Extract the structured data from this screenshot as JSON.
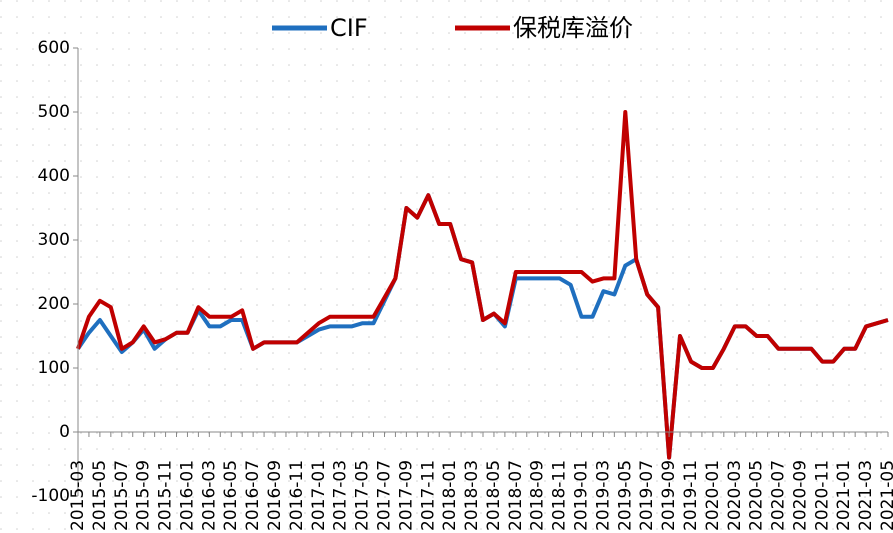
{
  "chart_data": {
    "type": "line",
    "categories": [
      "2015-03",
      null,
      "2015-05",
      null,
      "2015-07",
      null,
      "2015-09",
      null,
      "2015-11",
      null,
      "2016-01",
      null,
      "2016-03",
      null,
      "2016-05",
      null,
      "2016-07",
      null,
      "2016-09",
      null,
      "2016-11",
      null,
      "2017-01",
      null,
      "2017-03",
      null,
      "2017-05",
      null,
      "2017-07",
      null,
      "2017-09",
      null,
      "2017-11",
      null,
      "2018-01",
      null,
      "2018-03",
      null,
      "2018-05",
      null,
      "2018-07",
      null,
      "2018-09",
      null,
      "2018-11",
      null,
      "2019-01",
      null,
      "2019-03",
      null,
      "2019-05",
      null,
      "2019-07",
      null,
      "2019-09",
      null,
      "2019-11",
      null,
      "2020-01",
      null,
      "2020-03",
      null,
      "2020-05",
      null,
      "2020-07",
      null,
      "2020-09",
      null,
      "2020-11",
      null,
      "2021-01",
      null,
      "2021-03",
      null,
      "2021-05"
    ],
    "series": [
      {
        "name": "CIF",
        "color": "#1f6fbf",
        "values": [
          130,
          155,
          175,
          150,
          125,
          140,
          160,
          130,
          145,
          155,
          155,
          190,
          165,
          165,
          175,
          175,
          130,
          140,
          140,
          140,
          140,
          150,
          160,
          165,
          165,
          165,
          170,
          170,
          205,
          240,
          350,
          335,
          370,
          325,
          325,
          270,
          265,
          175,
          185,
          165,
          240,
          240,
          240,
          240,
          240,
          230,
          180,
          180,
          220,
          215,
          260,
          270,
          215,
          195,
          -40,
          150,
          110,
          100,
          100,
          130,
          165,
          165,
          150,
          150,
          130,
          130,
          130,
          130,
          110,
          110,
          130,
          130,
          165,
          170,
          175
        ]
      },
      {
        "name": "保税库溢价",
        "color": "#c00000",
        "values": [
          130,
          180,
          205,
          195,
          130,
          140,
          165,
          140,
          145,
          155,
          155,
          195,
          180,
          180,
          180,
          190,
          130,
          140,
          140,
          140,
          140,
          155,
          170,
          180,
          180,
          180,
          180,
          180,
          210,
          240,
          350,
          335,
          370,
          325,
          325,
          270,
          265,
          175,
          185,
          170,
          250,
          250,
          250,
          250,
          250,
          250,
          250,
          235,
          240,
          240,
          500,
          270,
          215,
          195,
          -40,
          150,
          110,
          100,
          100,
          130,
          165,
          165,
          150,
          150,
          130,
          130,
          130,
          130,
          110,
          110,
          130,
          130,
          165,
          170,
          175
        ]
      }
    ],
    "ylim": [
      -100,
      600
    ],
    "yticks": [
      -100,
      0,
      100,
      200,
      300,
      400,
      500,
      600
    ],
    "grid": true
  }
}
